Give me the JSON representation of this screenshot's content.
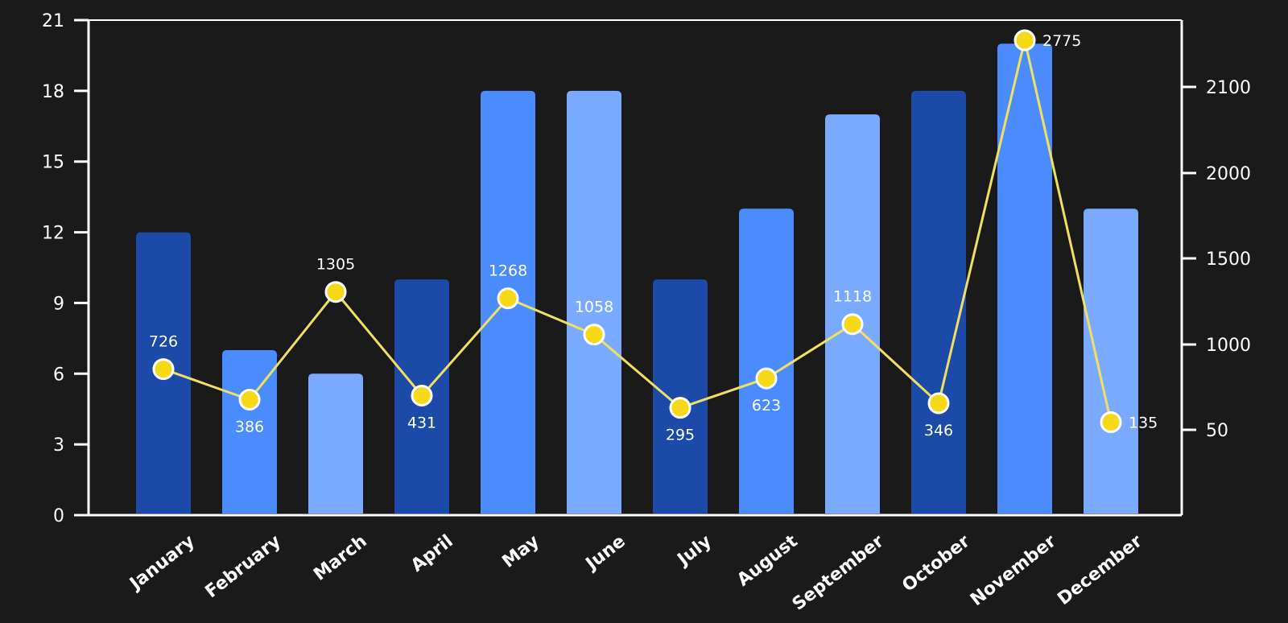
{
  "chart_data": {
    "type": "bar",
    "categories": [
      "January",
      "February",
      "March",
      "April",
      "May",
      "June",
      "July",
      "August",
      "September",
      "October",
      "November",
      "December"
    ],
    "series": [
      {
        "type": "bar",
        "axis": "left",
        "values": [
          12,
          7,
          6,
          10,
          18,
          18,
          10,
          13,
          17,
          18,
          20,
          13
        ],
        "colors": [
          "#1b4aa8",
          "#4a8cff",
          "#7aaaff",
          "#1b4aa8",
          "#4a8cff",
          "#7aaaff",
          "#1b4aa8",
          "#4a8cff",
          "#7aaaff",
          "#1b4aa8",
          "#4a8cff",
          "#7aaaff"
        ]
      },
      {
        "type": "line",
        "axis": "right",
        "values": [
          726,
          386,
          1305,
          431,
          1268,
          1058,
          295,
          623,
          1118,
          346,
          2775,
          135
        ],
        "color": "#f0e060",
        "marker_color": "#f5d916",
        "data_labels": [
          "726",
          "386",
          "1305",
          "431",
          "1268",
          "1058",
          "295",
          "623",
          "1118",
          "346",
          "2775",
          "135"
        ]
      }
    ],
    "y_left": {
      "ticks": [
        0,
        3,
        6,
        9,
        12,
        15,
        18,
        21
      ],
      "tick_labels": [
        "0",
        "3",
        "6",
        "9",
        "12",
        "15",
        "18",
        "21"
      ],
      "ylim": [
        0,
        21
      ]
    },
    "y_right": {
      "ticks": [
        50,
        1000,
        1500,
        2000,
        2100
      ],
      "tick_labels": [
        "50",
        "1000",
        "1500",
        "2000",
        "2100"
      ]
    },
    "grid": false,
    "legend": "none",
    "colors": {
      "background": "#1a1a1a",
      "axis": "#ffffff",
      "text": "#ffffff"
    }
  }
}
